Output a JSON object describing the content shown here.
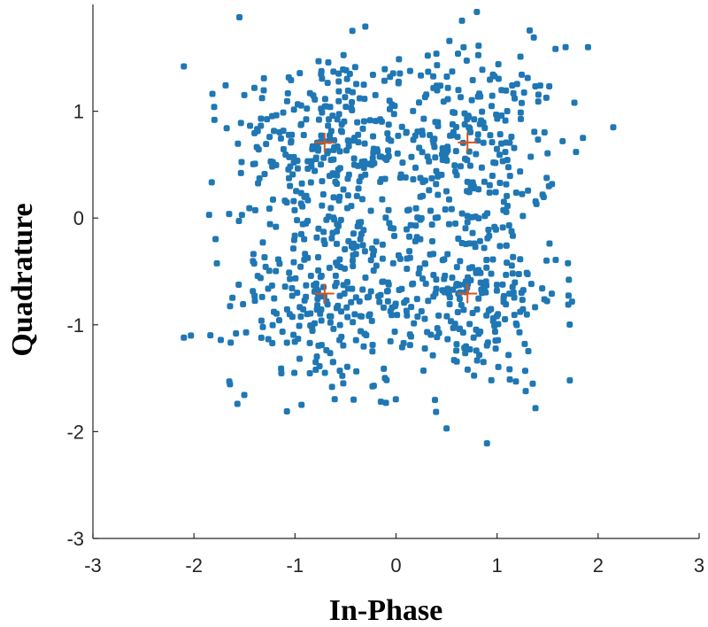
{
  "chart_data": {
    "type": "scatter",
    "title": "",
    "xlabel": "In-Phase",
    "ylabel": "Quadrature",
    "xlim": [
      -3,
      3
    ],
    "ylim": [
      -3,
      2
    ],
    "xticks": [
      "-3",
      "-2",
      "-1",
      "0",
      "1",
      "2",
      "3"
    ],
    "yticks": [
      "-3",
      "-2",
      "-1",
      "0",
      "1"
    ],
    "grid": false,
    "legend": "none",
    "series": [
      {
        "marker": "dot",
        "color": "#1f77b4",
        "description_count": 1000,
        "clusters": [
          {
            "cx": -0.707,
            "cy": 0.707
          },
          {
            "cx": 0.707,
            "cy": 0.707
          },
          {
            "cx": -0.707,
            "cy": -0.707
          },
          {
            "cx": 0.707,
            "cy": -0.707
          }
        ],
        "spread": 0.45
      },
      {
        "marker": "plus",
        "color": "#d95319",
        "x": [
          -0.707,
          0.707,
          -0.707,
          0.707
        ],
        "y": [
          0.707,
          0.707,
          -0.707,
          -0.707
        ]
      }
    ],
    "outliers": [
      {
        "x": -2.1,
        "y": 1.42
      },
      {
        "x": -1.55,
        "y": 1.88
      },
      {
        "x": -1.8,
        "y": 1.04
      },
      {
        "x": -1.85,
        "y": 0.03
      },
      {
        "x": -2.1,
        "y": -1.12
      },
      {
        "x": -2.03,
        "y": -1.1
      },
      {
        "x": -1.65,
        "y": -1.53
      },
      {
        "x": -1.57,
        "y": -1.74
      },
      {
        "x": -1.08,
        "y": -1.81
      },
      {
        "x": 1.9,
        "y": 1.6
      },
      {
        "x": 2.15,
        "y": 0.85
      },
      {
        "x": 1.85,
        "y": 0.75
      },
      {
        "x": 0.5,
        "y": -1.97
      },
      {
        "x": 0.9,
        "y": -2.11
      },
      {
        "x": 1.38,
        "y": -1.78
      },
      {
        "x": 1.72,
        "y": -1.52
      },
      {
        "x": 0.8,
        "y": 1.93
      },
      {
        "x": -0.1,
        "y": -1.73
      },
      {
        "x": -0.15,
        "y": -1.72
      },
      {
        "x": -0.42,
        "y": -1.7
      }
    ]
  }
}
